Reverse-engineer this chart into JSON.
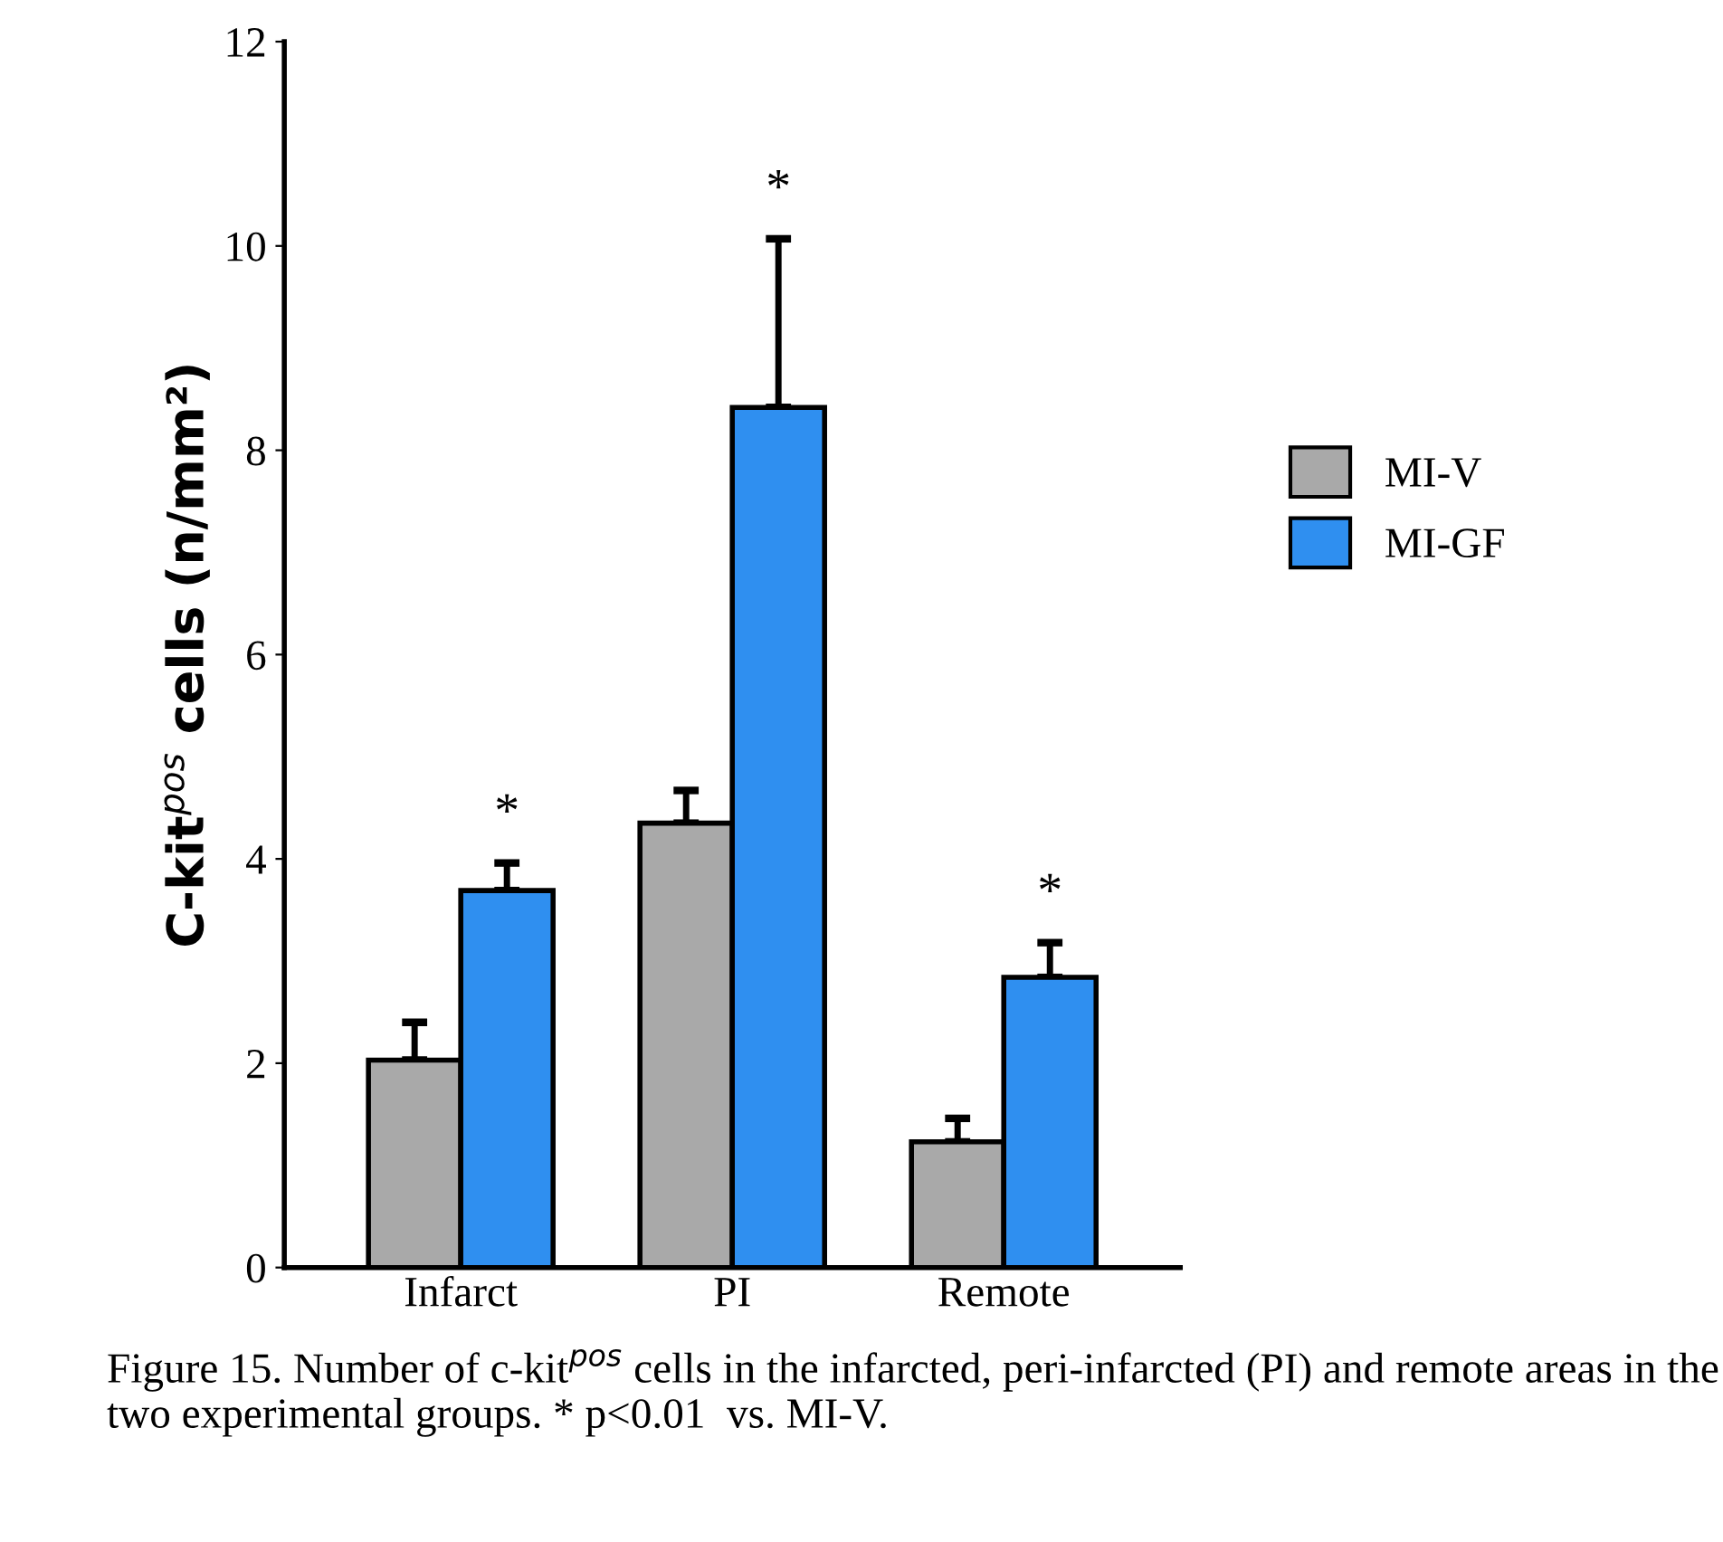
{
  "chart_data": {
    "type": "bar",
    "ylabel": "C-kit$^{pos}$ cells (n/mm²)",
    "categories": [
      "Infarct",
      "PI",
      "Remote"
    ],
    "series": [
      {
        "name": "MI-V",
        "color": "#a9a9a9",
        "values": [
          2.03,
          4.35,
          1.23
        ],
        "errors": [
          [
            2.03,
            2.4
          ],
          [
            4.35,
            4.67
          ],
          [
            1.23,
            1.46
          ]
        ]
      },
      {
        "name": "MI-GF",
        "color": "#2f8ff0",
        "values": [
          3.69,
          8.42,
          2.84
        ],
        "errors": [
          [
            3.69,
            3.96
          ],
          [
            8.42,
            10.07
          ],
          [
            2.84,
            3.18
          ]
        ]
      }
    ],
    "ylim": [
      0,
      12
    ],
    "yticks": [
      0,
      2,
      4,
      6,
      8,
      10,
      12
    ],
    "grid": false,
    "legend": "right",
    "annotations": [
      "*",
      "*",
      "*",
      "Figure 15. Number of c-kit$^{pos}$ cells in the infarcted, peri-infarcted (PI) and remote areas in the two experimental groups. * p<0.01  vs. MI-V."
    ]
  }
}
